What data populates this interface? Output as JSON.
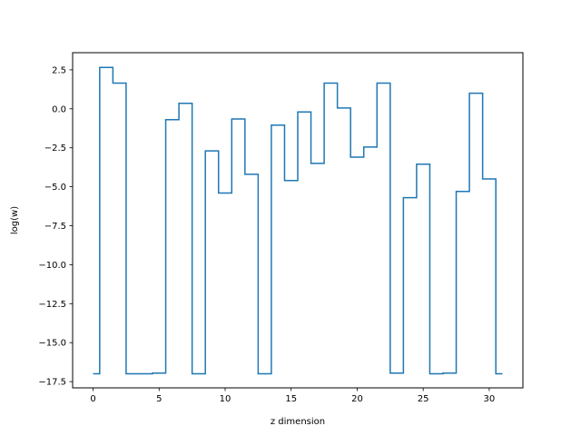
{
  "chart_data": {
    "type": "line",
    "drawstyle": "steps-mid",
    "title": "",
    "xlabel": "z dimension",
    "ylabel": "log(w)",
    "xlim": [
      -1.55,
      32.55
    ],
    "ylim": [
      -17.9,
      3.6
    ],
    "x_ticks": [
      0,
      5,
      10,
      15,
      20,
      25,
      30
    ],
    "x_tick_labels": [
      "0",
      "5",
      "10",
      "15",
      "20",
      "25",
      "30"
    ],
    "y_ticks": [
      2.5,
      0.0,
      -2.5,
      -5.0,
      -7.5,
      -10.0,
      -12.5,
      -15.0,
      -17.5
    ],
    "y_tick_labels": [
      "2.5",
      "0.0",
      "−2.5",
      "−5.0",
      "−7.5",
      "−10.0",
      "−12.5",
      "−15.0",
      "−17.5"
    ],
    "grid": false,
    "line_color": "#1f77b4",
    "x": [
      0,
      1,
      2,
      3,
      4,
      5,
      6,
      7,
      8,
      9,
      10,
      11,
      12,
      13,
      14,
      15,
      16,
      17,
      18,
      19,
      20,
      21,
      22,
      23,
      24,
      25,
      26,
      27,
      28,
      29,
      30,
      31
    ],
    "y": [
      -17.0,
      2.65,
      1.65,
      -17.0,
      -17.0,
      -16.95,
      -0.7,
      0.35,
      -17.0,
      -2.7,
      -5.4,
      -0.65,
      -4.2,
      -17.0,
      -1.05,
      -4.6,
      -0.2,
      -3.5,
      1.65,
      0.05,
      -3.1,
      -2.45,
      1.65,
      -16.95,
      -5.7,
      -3.55,
      -17.0,
      -16.95,
      -5.3,
      1.0,
      -4.5,
      -17.0
    ]
  }
}
